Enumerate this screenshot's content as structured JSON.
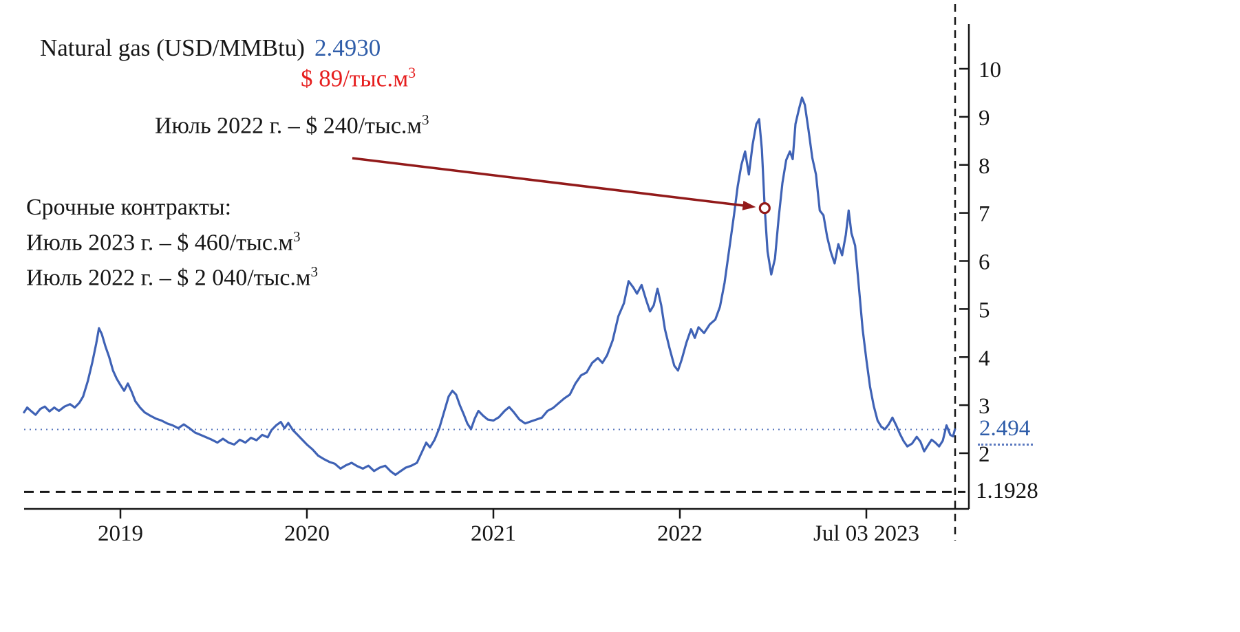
{
  "title": {
    "instrument": "Natural gas (USD/MMBtu)",
    "last_value": "2.4930",
    "converted": {
      "text": "$ 89/тыс.м",
      "sup": "3"
    }
  },
  "annotations": {
    "arrow_label": {
      "text": "Июль 2022 г. – $ 240/тыс.м",
      "sup": "3"
    },
    "contracts_header": "Срочные контракты:",
    "contracts_lines": [
      {
        "text": "Июль 2023 г. – $ 460/тыс.м",
        "sup": "3"
      },
      {
        "text": "Июль 2022 г. – $ 2 040/тыс.м",
        "sup": "3"
      }
    ]
  },
  "price_labels": {
    "current": "2.494",
    "lower_bound": "1.1928"
  },
  "colors": {
    "line_blue": "#3f62b5",
    "accent_blue": "#2f5da9",
    "dotted_blue": "#5b79bf",
    "red": "#e61e1e",
    "arrow_red": "#921a1a",
    "axis_black": "#161616"
  },
  "chart_data": {
    "type": "line",
    "title": "Natural gas (USD/MMBtu)",
    "ylabel": "USD/MMBtu",
    "grid": false,
    "legend": false,
    "xlim": [
      2018.48,
      2023.52
    ],
    "ylim": [
      1.0,
      10.6
    ],
    "x_ticks": [
      {
        "t": 2019,
        "label": "2019"
      },
      {
        "t": 2020,
        "label": "2020"
      },
      {
        "t": 2021,
        "label": "2021"
      },
      {
        "t": 2022,
        "label": "2022"
      },
      {
        "t": 2023,
        "label": "Jul 03 2023"
      }
    ],
    "y_ticks": [
      2,
      3,
      4,
      5,
      6,
      7,
      8,
      9,
      10
    ],
    "current_value": 2.494,
    "lower_dashed_level": 1.1928,
    "marker": {
      "t": 2022.455,
      "value": 7.1,
      "label": "Июль 2022 г. – $ 240/тыс.м³"
    },
    "series": [
      {
        "name": "Natural gas (USD/MMBtu)",
        "color": "#3f62b5",
        "points": [
          [
            2018.483,
            2.85
          ],
          [
            2018.5,
            2.95
          ],
          [
            2018.52,
            2.88
          ],
          [
            2018.545,
            2.8
          ],
          [
            2018.57,
            2.92
          ],
          [
            2018.595,
            2.97
          ],
          [
            2018.62,
            2.87
          ],
          [
            2018.645,
            2.95
          ],
          [
            2018.67,
            2.88
          ],
          [
            2018.7,
            2.97
          ],
          [
            2018.73,
            3.02
          ],
          [
            2018.755,
            2.95
          ],
          [
            2018.78,
            3.05
          ],
          [
            2018.8,
            3.18
          ],
          [
            2018.825,
            3.5
          ],
          [
            2018.85,
            3.9
          ],
          [
            2018.87,
            4.28
          ],
          [
            2018.885,
            4.6
          ],
          [
            2018.9,
            4.48
          ],
          [
            2018.92,
            4.22
          ],
          [
            2018.94,
            4.0
          ],
          [
            2018.96,
            3.72
          ],
          [
            2018.98,
            3.55
          ],
          [
            2019.0,
            3.42
          ],
          [
            2019.02,
            3.3
          ],
          [
            2019.04,
            3.45
          ],
          [
            2019.06,
            3.28
          ],
          [
            2019.08,
            3.08
          ],
          [
            2019.105,
            2.95
          ],
          [
            2019.13,
            2.85
          ],
          [
            2019.16,
            2.78
          ],
          [
            2019.19,
            2.72
          ],
          [
            2019.22,
            2.68
          ],
          [
            2019.25,
            2.62
          ],
          [
            2019.28,
            2.58
          ],
          [
            2019.31,
            2.52
          ],
          [
            2019.34,
            2.6
          ],
          [
            2019.37,
            2.52
          ],
          [
            2019.4,
            2.43
          ],
          [
            2019.43,
            2.38
          ],
          [
            2019.46,
            2.33
          ],
          [
            2019.49,
            2.28
          ],
          [
            2019.52,
            2.22
          ],
          [
            2019.55,
            2.3
          ],
          [
            2019.58,
            2.22
          ],
          [
            2019.61,
            2.18
          ],
          [
            2019.64,
            2.28
          ],
          [
            2019.67,
            2.22
          ],
          [
            2019.7,
            2.32
          ],
          [
            2019.73,
            2.27
          ],
          [
            2019.76,
            2.38
          ],
          [
            2019.79,
            2.33
          ],
          [
            2019.81,
            2.48
          ],
          [
            2019.835,
            2.58
          ],
          [
            2019.86,
            2.65
          ],
          [
            2019.88,
            2.52
          ],
          [
            2019.9,
            2.63
          ],
          [
            2019.925,
            2.48
          ],
          [
            2019.95,
            2.38
          ],
          [
            2019.975,
            2.28
          ],
          [
            2020.0,
            2.18
          ],
          [
            2020.03,
            2.08
          ],
          [
            2020.06,
            1.95
          ],
          [
            2020.09,
            1.88
          ],
          [
            2020.12,
            1.82
          ],
          [
            2020.15,
            1.78
          ],
          [
            2020.18,
            1.68
          ],
          [
            2020.21,
            1.75
          ],
          [
            2020.24,
            1.8
          ],
          [
            2020.27,
            1.73
          ],
          [
            2020.3,
            1.68
          ],
          [
            2020.33,
            1.74
          ],
          [
            2020.36,
            1.63
          ],
          [
            2020.39,
            1.7
          ],
          [
            2020.42,
            1.74
          ],
          [
            2020.45,
            1.62
          ],
          [
            2020.475,
            1.55
          ],
          [
            2020.5,
            1.62
          ],
          [
            2020.53,
            1.7
          ],
          [
            2020.56,
            1.74
          ],
          [
            2020.59,
            1.8
          ],
          [
            2020.62,
            2.05
          ],
          [
            2020.64,
            2.22
          ],
          [
            2020.66,
            2.12
          ],
          [
            2020.685,
            2.28
          ],
          [
            2020.71,
            2.52
          ],
          [
            2020.735,
            2.85
          ],
          [
            2020.76,
            3.18
          ],
          [
            2020.78,
            3.3
          ],
          [
            2020.8,
            3.22
          ],
          [
            2020.82,
            3.0
          ],
          [
            2020.84,
            2.82
          ],
          [
            2020.86,
            2.62
          ],
          [
            2020.88,
            2.5
          ],
          [
            2020.9,
            2.72
          ],
          [
            2020.92,
            2.88
          ],
          [
            2020.945,
            2.78
          ],
          [
            2020.97,
            2.7
          ],
          [
            2021.0,
            2.68
          ],
          [
            2021.03,
            2.75
          ],
          [
            2021.06,
            2.88
          ],
          [
            2021.085,
            2.96
          ],
          [
            2021.11,
            2.85
          ],
          [
            2021.14,
            2.7
          ],
          [
            2021.17,
            2.62
          ],
          [
            2021.2,
            2.66
          ],
          [
            2021.23,
            2.7
          ],
          [
            2021.26,
            2.74
          ],
          [
            2021.29,
            2.88
          ],
          [
            2021.32,
            2.94
          ],
          [
            2021.35,
            3.04
          ],
          [
            2021.38,
            3.14
          ],
          [
            2021.41,
            3.22
          ],
          [
            2021.44,
            3.45
          ],
          [
            2021.47,
            3.62
          ],
          [
            2021.5,
            3.68
          ],
          [
            2021.53,
            3.88
          ],
          [
            2021.56,
            3.98
          ],
          [
            2021.585,
            3.88
          ],
          [
            2021.61,
            4.04
          ],
          [
            2021.64,
            4.35
          ],
          [
            2021.67,
            4.85
          ],
          [
            2021.7,
            5.12
          ],
          [
            2021.725,
            5.58
          ],
          [
            2021.75,
            5.45
          ],
          [
            2021.77,
            5.32
          ],
          [
            2021.795,
            5.5
          ],
          [
            2021.82,
            5.18
          ],
          [
            2021.84,
            4.95
          ],
          [
            2021.86,
            5.08
          ],
          [
            2021.88,
            5.42
          ],
          [
            2021.9,
            5.08
          ],
          [
            2021.92,
            4.58
          ],
          [
            2021.945,
            4.18
          ],
          [
            2021.97,
            3.82
          ],
          [
            2021.99,
            3.72
          ],
          [
            2022.01,
            3.95
          ],
          [
            2022.035,
            4.3
          ],
          [
            2022.06,
            4.58
          ],
          [
            2022.08,
            4.4
          ],
          [
            2022.1,
            4.62
          ],
          [
            2022.13,
            4.5
          ],
          [
            2022.16,
            4.68
          ],
          [
            2022.19,
            4.78
          ],
          [
            2022.215,
            5.05
          ],
          [
            2022.24,
            5.55
          ],
          [
            2022.265,
            6.25
          ],
          [
            2022.29,
            6.95
          ],
          [
            2022.31,
            7.55
          ],
          [
            2022.33,
            8.0
          ],
          [
            2022.35,
            8.28
          ],
          [
            2022.37,
            7.8
          ],
          [
            2022.39,
            8.42
          ],
          [
            2022.41,
            8.85
          ],
          [
            2022.425,
            8.95
          ],
          [
            2022.44,
            8.32
          ],
          [
            2022.455,
            7.1
          ],
          [
            2022.47,
            6.2
          ],
          [
            2022.49,
            5.72
          ],
          [
            2022.51,
            6.05
          ],
          [
            2022.53,
            6.9
          ],
          [
            2022.55,
            7.62
          ],
          [
            2022.57,
            8.1
          ],
          [
            2022.59,
            8.28
          ],
          [
            2022.605,
            8.12
          ],
          [
            2022.62,
            8.85
          ],
          [
            2022.64,
            9.18
          ],
          [
            2022.655,
            9.4
          ],
          [
            2022.67,
            9.25
          ],
          [
            2022.69,
            8.72
          ],
          [
            2022.71,
            8.15
          ],
          [
            2022.73,
            7.8
          ],
          [
            2022.75,
            7.05
          ],
          [
            2022.77,
            6.95
          ],
          [
            2022.79,
            6.5
          ],
          [
            2022.81,
            6.18
          ],
          [
            2022.83,
            5.95
          ],
          [
            2022.85,
            6.35
          ],
          [
            2022.87,
            6.12
          ],
          [
            2022.89,
            6.55
          ],
          [
            2022.905,
            7.05
          ],
          [
            2022.92,
            6.58
          ],
          [
            2022.94,
            6.32
          ],
          [
            2022.96,
            5.45
          ],
          [
            2022.98,
            4.58
          ],
          [
            2023.0,
            3.95
          ],
          [
            2023.02,
            3.38
          ],
          [
            2023.04,
            2.98
          ],
          [
            2023.06,
            2.68
          ],
          [
            2023.08,
            2.55
          ],
          [
            2023.1,
            2.5
          ],
          [
            2023.12,
            2.6
          ],
          [
            2023.14,
            2.74
          ],
          [
            2023.16,
            2.58
          ],
          [
            2023.18,
            2.4
          ],
          [
            2023.2,
            2.25
          ],
          [
            2023.22,
            2.14
          ],
          [
            2023.245,
            2.2
          ],
          [
            2023.27,
            2.34
          ],
          [
            2023.29,
            2.24
          ],
          [
            2023.31,
            2.04
          ],
          [
            2023.33,
            2.16
          ],
          [
            2023.35,
            2.28
          ],
          [
            2023.37,
            2.22
          ],
          [
            2023.39,
            2.14
          ],
          [
            2023.41,
            2.26
          ],
          [
            2023.43,
            2.58
          ],
          [
            2023.45,
            2.38
          ],
          [
            2023.465,
            2.35
          ],
          [
            2023.475,
            2.494
          ]
        ]
      }
    ]
  }
}
